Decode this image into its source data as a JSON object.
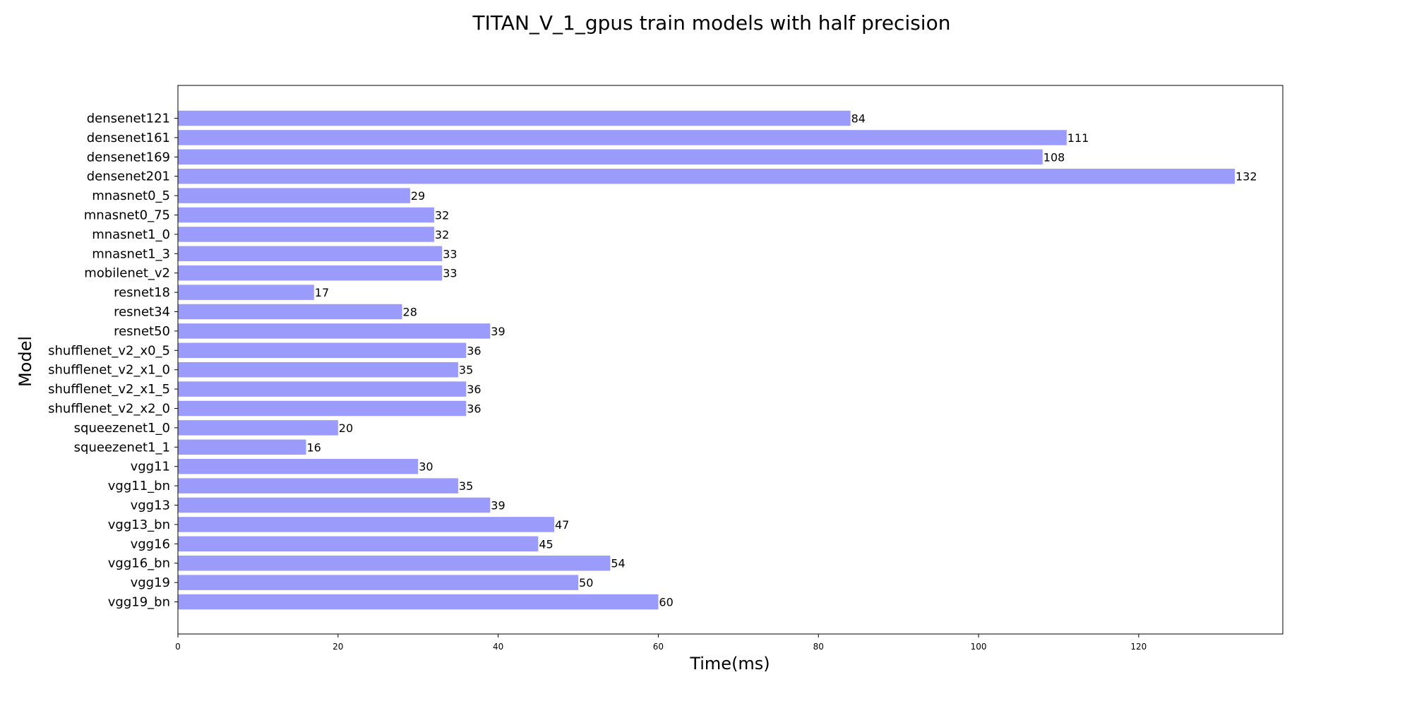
{
  "chart_data": {
    "type": "bar",
    "orientation": "horizontal",
    "title": "TITAN_V_1_gpus train models with half precision",
    "xlabel": "Time(ms)",
    "ylabel": "Model",
    "xlim": [
      0,
      138
    ],
    "xticks": [
      0,
      20,
      40,
      60,
      80,
      100,
      120
    ],
    "grid": false,
    "bar_color": "#9b9bfb",
    "categories": [
      "densenet121",
      "densenet161",
      "densenet169",
      "densenet201",
      "mnasnet0_5",
      "mnasnet0_75",
      "mnasnet1_0",
      "mnasnet1_3",
      "mobilenet_v2",
      "resnet18",
      "resnet34",
      "resnet50",
      "shufflenet_v2_x0_5",
      "shufflenet_v2_x1_0",
      "shufflenet_v2_x1_5",
      "shufflenet_v2_x2_0",
      "squeezenet1_0",
      "squeezenet1_1",
      "vgg11",
      "vgg11_bn",
      "vgg13",
      "vgg13_bn",
      "vgg16",
      "vgg16_bn",
      "vgg19",
      "vgg19_bn"
    ],
    "values": [
      84,
      111,
      108,
      132,
      29,
      32,
      32,
      33,
      33,
      17,
      28,
      39,
      36,
      35,
      36,
      36,
      20,
      16,
      30,
      35,
      39,
      47,
      45,
      54,
      50,
      60
    ]
  }
}
